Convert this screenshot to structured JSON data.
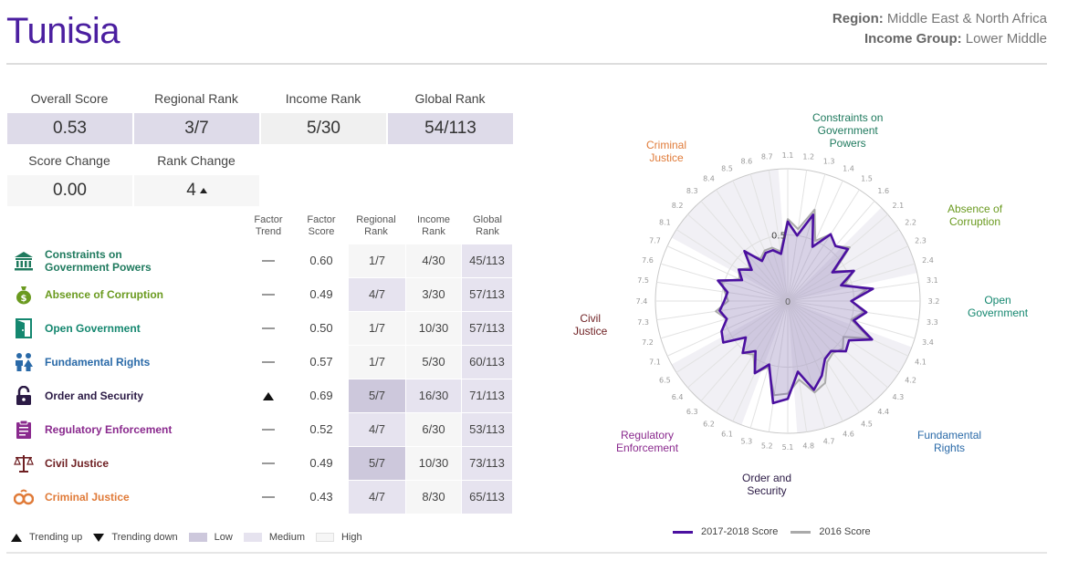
{
  "header": {
    "country": "Tunisia",
    "region_label": "Region:",
    "region_value": "Middle East & North Africa",
    "income_label": "Income Group:",
    "income_value": "Lower Middle"
  },
  "summary": {
    "overall_score_label": "Overall Score",
    "overall_score": "0.53",
    "regional_rank_label": "Regional Rank",
    "regional_rank": "3/7",
    "income_rank_label": "Income Rank",
    "income_rank": "5/30",
    "global_rank_label": "Global Rank",
    "global_rank": "54/113",
    "score_change_label": "Score Change",
    "score_change": "0.00",
    "rank_change_label": "Rank Change",
    "rank_change": "4"
  },
  "table": {
    "headers": {
      "trend": "Factor\nTrend",
      "score": "Factor\nScore",
      "regional": "Regional\nRank",
      "income": "Income\nRank",
      "global": "Global\nRank"
    },
    "rows": [
      {
        "name": "Constraints on\nGovernment Powers",
        "color": "#1f7a5e",
        "icon": "government-building-icon",
        "trend": "flat",
        "score": "0.60",
        "regional": "1/7",
        "regional_level": "high",
        "income": "4/30",
        "income_level": "high",
        "global": "45/113",
        "global_level": "medium"
      },
      {
        "name": "Absence of Corruption",
        "color": "#6a9a1f",
        "icon": "money-bag-icon",
        "trend": "flat",
        "score": "0.49",
        "regional": "4/7",
        "regional_level": "medium",
        "income": "3/30",
        "income_level": "high",
        "global": "57/113",
        "global_level": "medium"
      },
      {
        "name": "Open Government",
        "color": "#14876f",
        "icon": "open-door-icon",
        "trend": "flat",
        "score": "0.50",
        "regional": "1/7",
        "regional_level": "high",
        "income": "10/30",
        "income_level": "high",
        "global": "57/113",
        "global_level": "medium"
      },
      {
        "name": "Fundamental Rights",
        "color": "#2a6aa8",
        "icon": "people-icon",
        "trend": "flat",
        "score": "0.57",
        "regional": "1/7",
        "regional_level": "high",
        "income": "5/30",
        "income_level": "high",
        "global": "60/113",
        "global_level": "medium"
      },
      {
        "name": "Order and Security",
        "color": "#2b1a45",
        "icon": "padlock-icon",
        "trend": "up",
        "score": "0.69",
        "regional": "5/7",
        "regional_level": "low",
        "income": "16/30",
        "income_level": "medium",
        "global": "71/113",
        "global_level": "medium"
      },
      {
        "name": "Regulatory Enforcement",
        "color": "#8a2a8e",
        "icon": "clipboard-icon",
        "trend": "flat",
        "score": "0.52",
        "regional": "4/7",
        "regional_level": "medium",
        "income": "6/30",
        "income_level": "high",
        "global": "53/113",
        "global_level": "medium"
      },
      {
        "name": "Civil Justice",
        "color": "#6e1f22",
        "icon": "scales-icon",
        "trend": "flat",
        "score": "0.49",
        "regional": "5/7",
        "regional_level": "low",
        "income": "10/30",
        "income_level": "high",
        "global": "73/113",
        "global_level": "medium"
      },
      {
        "name": "Criminal Justice",
        "color": "#e07b39",
        "icon": "handcuffs-icon",
        "trend": "flat",
        "score": "0.43",
        "regional": "4/7",
        "regional_level": "medium",
        "income": "8/30",
        "income_level": "high",
        "global": "65/113",
        "global_level": "medium"
      }
    ]
  },
  "legend_left": {
    "up": "Trending up",
    "down": "Trending down",
    "low": "Low",
    "medium": "Medium",
    "high": "High"
  },
  "legend_right": {
    "current": "2017-2018 Score",
    "previous": "2016 Score"
  },
  "colors": {
    "accent": "#4b1fa0",
    "current_line": "#4b10a0",
    "previous_line": "#aaaaaa",
    "low": "#cdc8dc",
    "medium": "#e6e3ef",
    "high": "#f6f6f6"
  },
  "chart_data": {
    "type": "radar",
    "range": [
      0,
      1
    ],
    "center_label": "0",
    "ring_label": "0.5",
    "subfactors": [
      "1.1",
      "1.2",
      "1.3",
      "1.4",
      "1.5",
      "1.6",
      "2.1",
      "2.2",
      "2.3",
      "2.4",
      "3.1",
      "3.2",
      "3.3",
      "3.4",
      "4.1",
      "4.2",
      "4.3",
      "4.4",
      "4.5",
      "4.6",
      "4.7",
      "4.8",
      "5.1",
      "5.2",
      "5.3",
      "6.1",
      "6.2",
      "6.3",
      "6.4",
      "6.5",
      "7.1",
      "7.2",
      "7.3",
      "7.4",
      "7.5",
      "7.6",
      "7.7",
      "8.1",
      "8.2",
      "8.3",
      "8.4",
      "8.5",
      "8.6",
      "8.7"
    ],
    "dimensions": [
      {
        "label": "Constraints on\nGovernment\nPowers",
        "color": "#1f7a5e"
      },
      {
        "label": "Absence of\nCorruption",
        "color": "#6a9a1f"
      },
      {
        "label": "Open\nGovernment",
        "color": "#14876f"
      },
      {
        "label": "Fundamental\nRights",
        "color": "#2a6aa8"
      },
      {
        "label": "Order and\nSecurity",
        "color": "#2b1a45"
      },
      {
        "label": "Regulatory\nEnforcement",
        "color": "#8a2a8e"
      },
      {
        "label": "Civil\nJustice",
        "color": "#6e1f22"
      },
      {
        "label": "Criminal\nJustice",
        "color": "#e07b39"
      }
    ],
    "series": [
      {
        "name": "2017-2018 Score",
        "values": [
          0.6,
          0.5,
          0.68,
          0.45,
          0.6,
          0.55,
          0.6,
          0.4,
          0.55,
          0.42,
          0.65,
          0.48,
          0.6,
          0.52,
          0.7,
          0.55,
          0.58,
          0.5,
          0.52,
          0.62,
          0.7,
          0.54,
          0.74,
          0.78,
          0.5,
          0.6,
          0.45,
          0.52,
          0.42,
          0.58,
          0.55,
          0.48,
          0.52,
          0.48,
          0.46,
          0.55,
          0.38,
          0.44,
          0.36,
          0.5,
          0.36,
          0.4,
          0.4,
          0.36
        ]
      },
      {
        "name": "2016 Score",
        "values": [
          0.62,
          0.55,
          0.72,
          0.5,
          0.6,
          0.55,
          0.62,
          0.42,
          0.55,
          0.45,
          0.6,
          0.48,
          0.58,
          0.5,
          0.68,
          0.5,
          0.55,
          0.52,
          0.55,
          0.68,
          0.72,
          0.6,
          0.7,
          0.72,
          0.52,
          0.6,
          0.48,
          0.52,
          0.42,
          0.58,
          0.55,
          0.48,
          0.55,
          0.45,
          0.48,
          0.52,
          0.4,
          0.44,
          0.38,
          0.48,
          0.38,
          0.42,
          0.42,
          0.38
        ]
      }
    ],
    "legend_position": "bottom"
  }
}
